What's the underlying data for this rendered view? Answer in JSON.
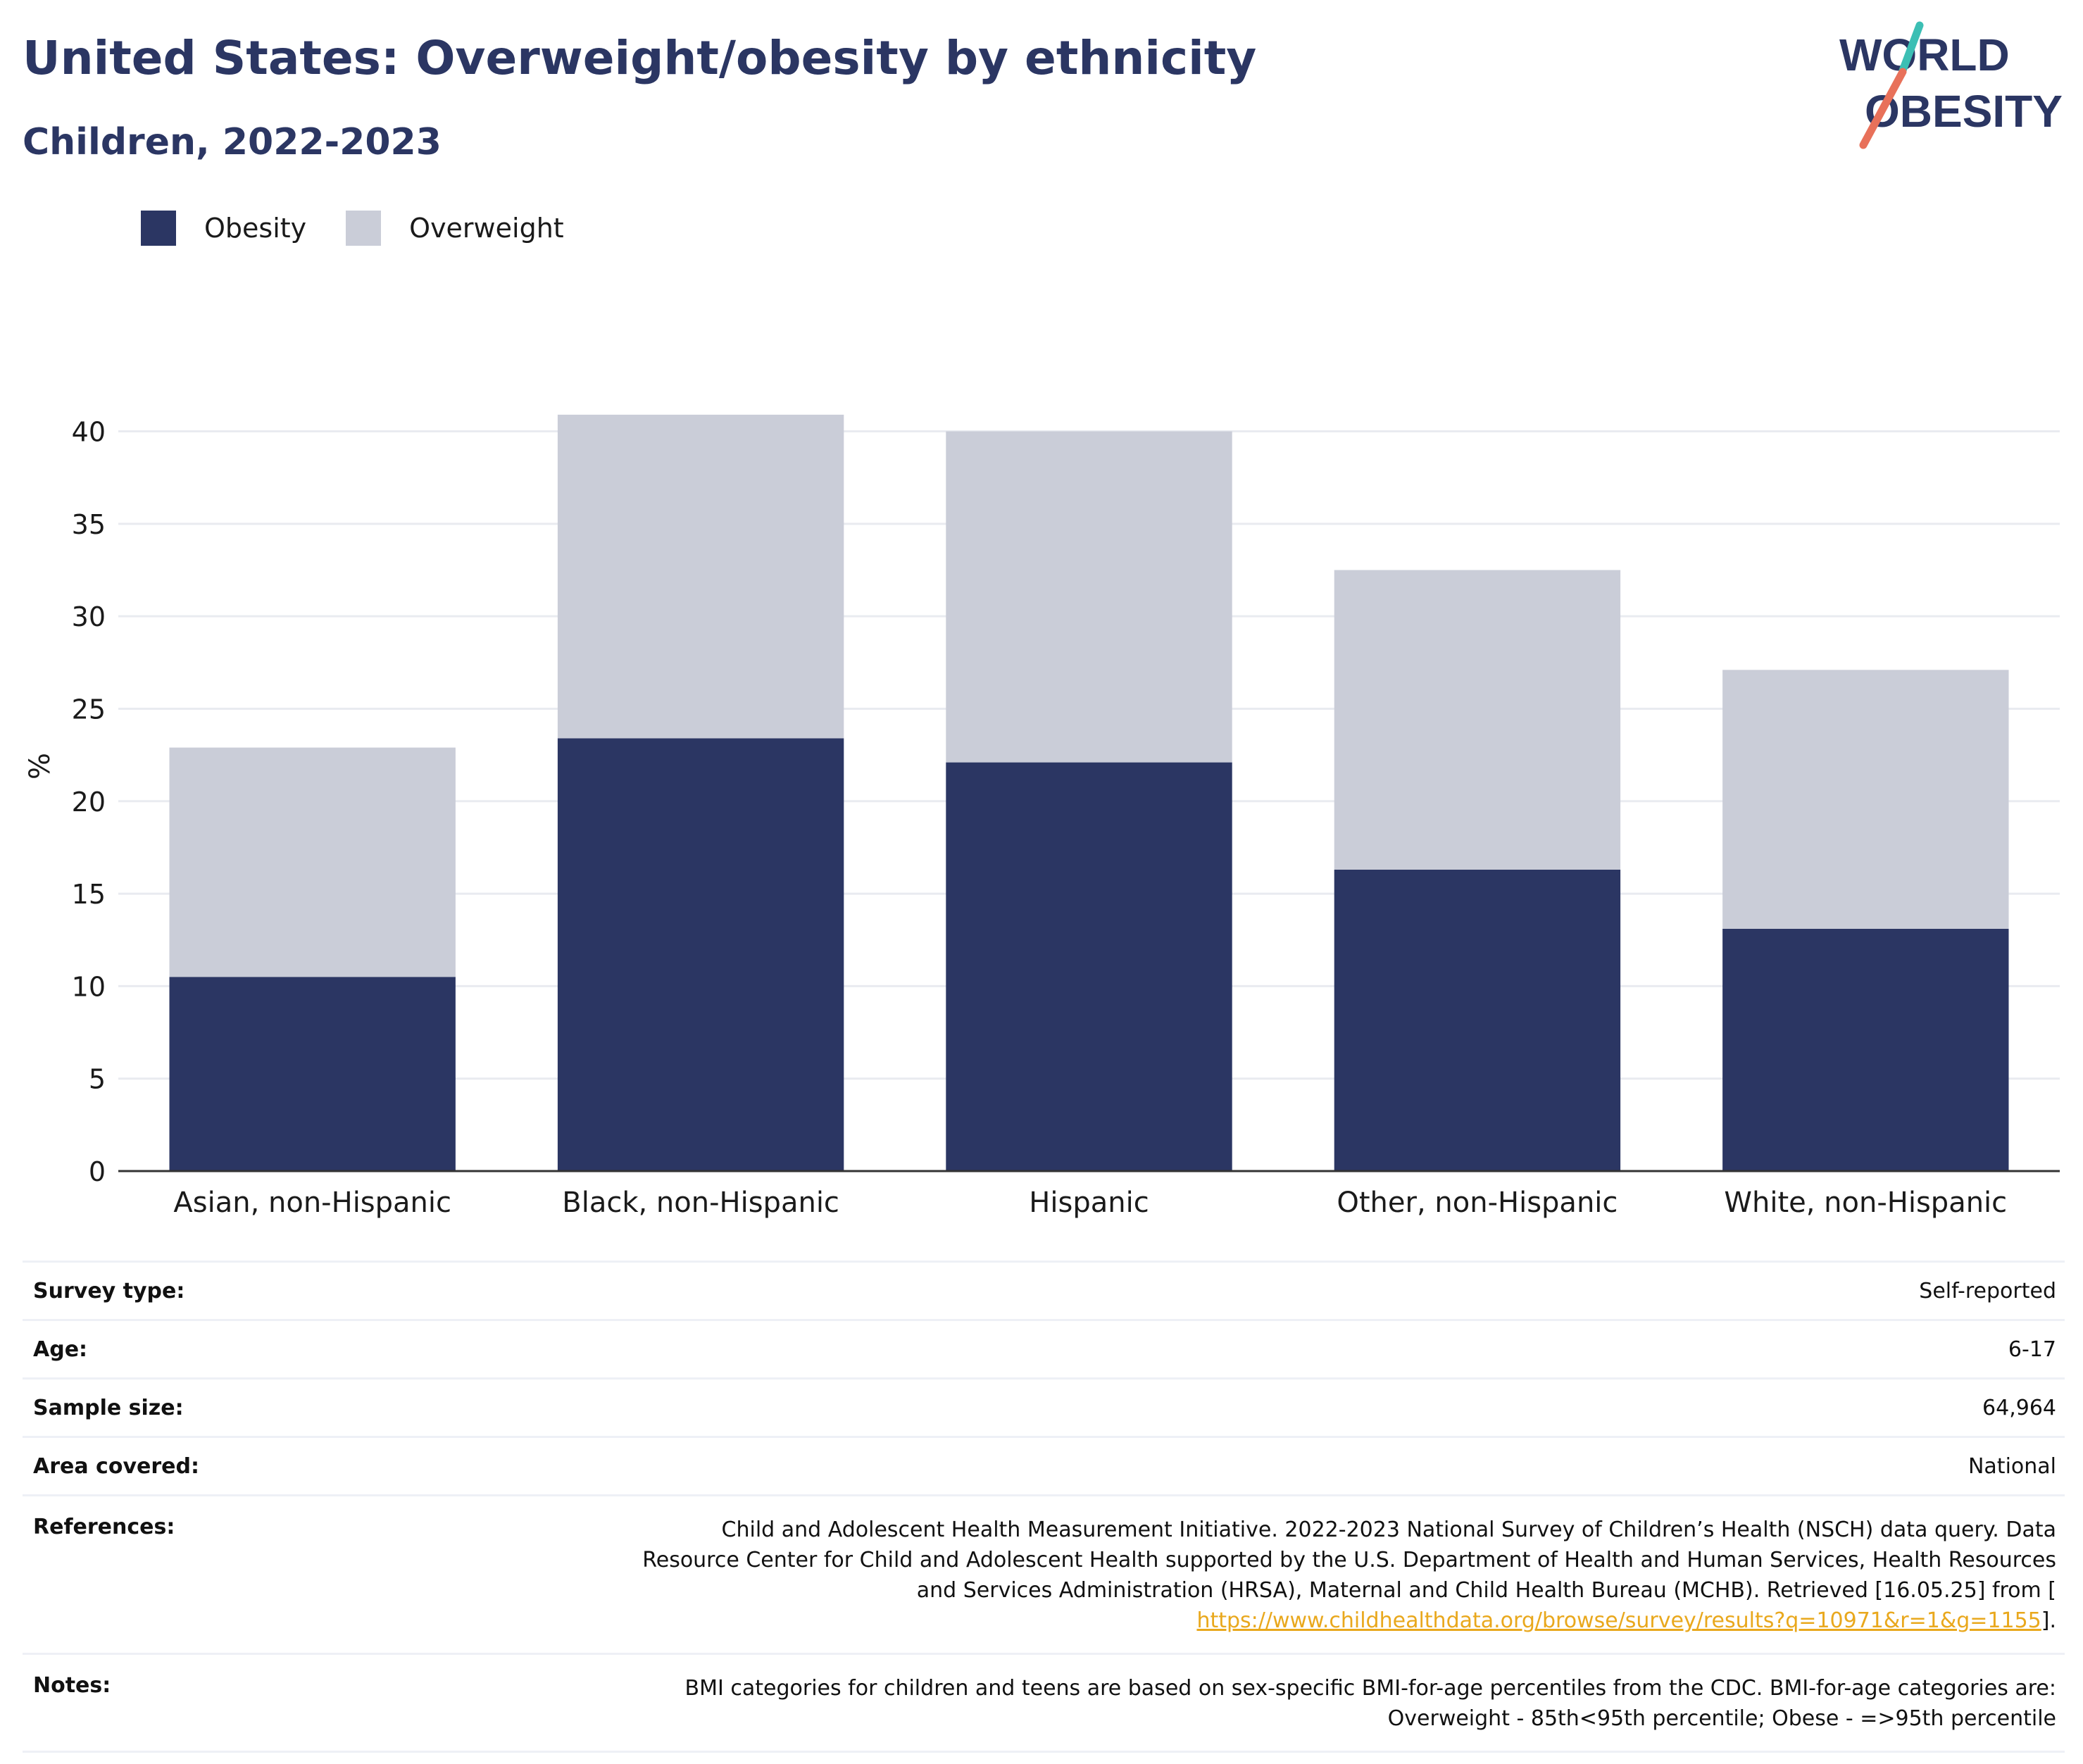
{
  "title": "United States: Overweight/obesity by ethnicity",
  "subtitle": "Children, 2022-2023",
  "logo": {
    "line1": "WORLD",
    "line2": "OBESITY",
    "colors": {
      "text": "#2b3663",
      "slash_top": "#3cbfb4",
      "slash_bottom": "#e8715a"
    }
  },
  "colors": {
    "obesity": "#2b3663",
    "overweight": "#cacdd8",
    "grid": "#e9ebf0",
    "axis": "#333333"
  },
  "chart_data": {
    "type": "bar",
    "stacked": true,
    "categories": [
      "Asian, non-Hispanic",
      "Black, non-Hispanic",
      "Hispanic",
      "Other, non-Hispanic",
      "White, non-Hispanic"
    ],
    "series": [
      {
        "name": "Obesity",
        "values": [
          10.5,
          23.4,
          22.1,
          16.3,
          13.1
        ]
      },
      {
        "name": "Overweight",
        "values": [
          12.4,
          17.5,
          17.9,
          16.2,
          14.0
        ]
      }
    ],
    "ylabel": "%",
    "xlabel": "",
    "ylim": [
      0,
      42
    ],
    "yticks": [
      0,
      5,
      10,
      15,
      20,
      25,
      30,
      35,
      40
    ],
    "grid": true,
    "legend_position": "top-left"
  },
  "legend": [
    {
      "label": "Obesity",
      "color": "#2b3663"
    },
    {
      "label": "Overweight",
      "color": "#cacdd8"
    }
  ],
  "info": {
    "survey_type": {
      "label": "Survey type:",
      "value": "Self-reported"
    },
    "age": {
      "label": "Age:",
      "value": "6-17"
    },
    "sample_size": {
      "label": "Sample size:",
      "value": "64,964"
    },
    "area": {
      "label": "Area covered:",
      "value": "National"
    },
    "references": {
      "label": "References:",
      "line1": "Child and Adolescent Health Measurement Initiative. 2022-2023 National Survey of Children’s Health (NSCH) data query. Data",
      "line2": "Resource Center for Child and Adolescent Health supported by the U.S. Department of Health and Human Services, Health Resources",
      "line3": "and Services Administration (HRSA), Maternal and Child Health Bureau (MCHB). Retrieved [16.05.25] from [",
      "link": "https://www.childhealthdata.org/browse/survey/results?q=10971&r=1&g=1155",
      "after_link": "]."
    },
    "notes": {
      "label": "Notes:",
      "line1": "BMI categories for children and teens are based on sex-specific BMI-for-age percentiles from the CDC. BMI-for-age categories are:",
      "line2": "Overweight - 85th<95th percentile; Obese - =>95th percentile"
    }
  }
}
